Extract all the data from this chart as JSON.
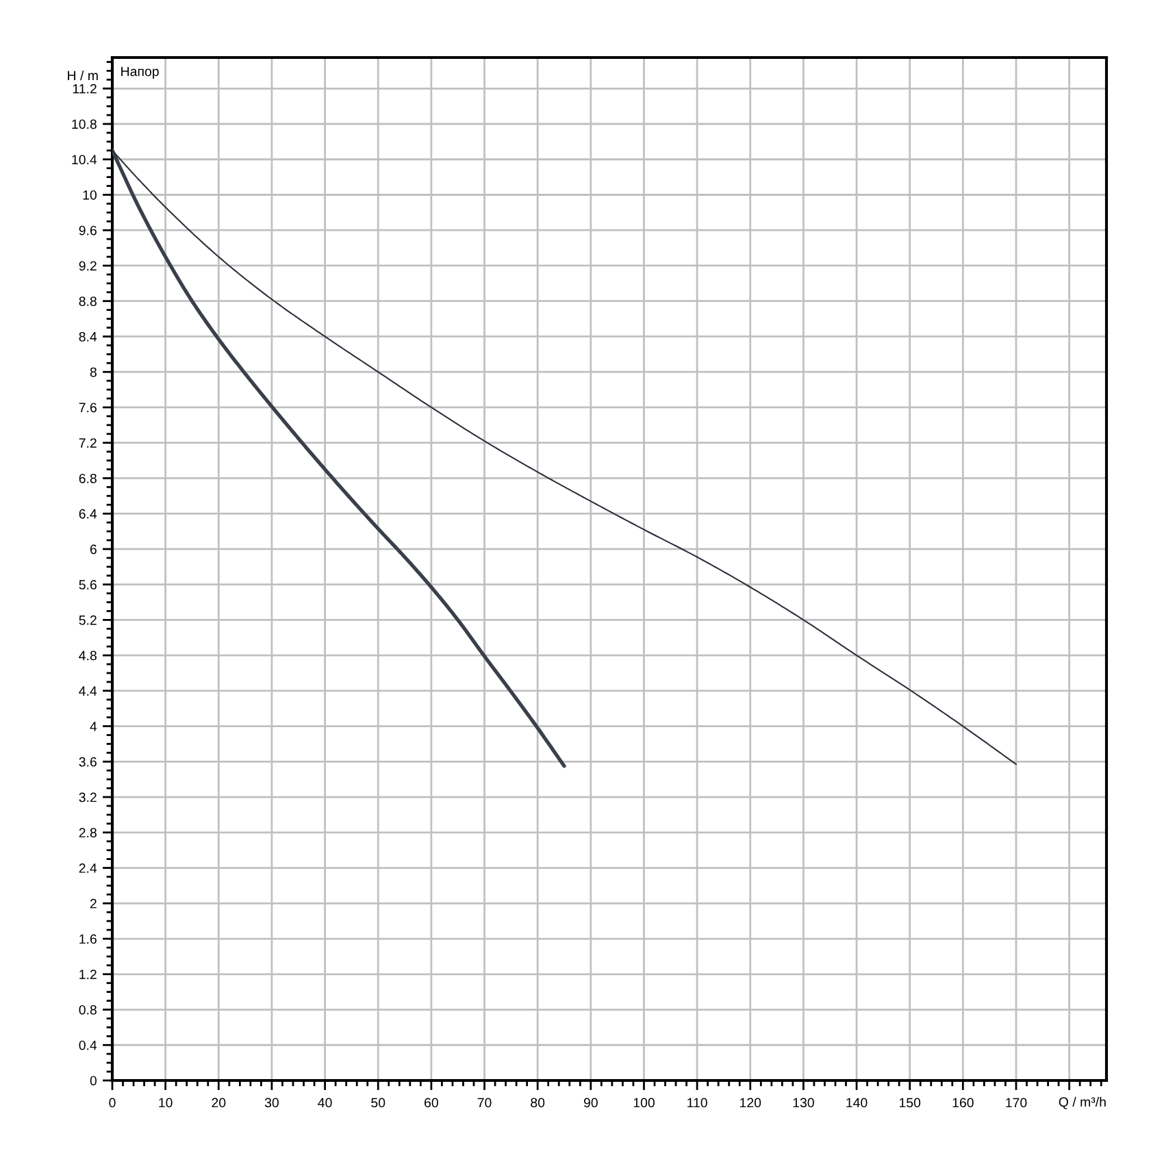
{
  "chart_data": {
    "type": "line",
    "title": "Напор",
    "xlabel": "Q / m³/h",
    "ylabel": "H / m",
    "series": [
      {
        "color": "#3a3f4b",
        "x": [
          0,
          5,
          10,
          15,
          20,
          25,
          30,
          35,
          40,
          45,
          50,
          55,
          60,
          65,
          70,
          75,
          80,
          85
        ],
        "values": [
          10.5,
          9.86,
          9.3,
          8.8,
          8.37,
          7.98,
          7.61,
          7.25,
          6.9,
          6.56,
          6.23,
          5.91,
          5.57,
          5.2,
          4.79,
          4.39,
          3.98,
          3.55
        ]
      },
      {
        "color": "#2b303b",
        "x": [
          0,
          5,
          10,
          20,
          30,
          40,
          50,
          60,
          70,
          80,
          90,
          100,
          110,
          120,
          130,
          140,
          150,
          160,
          170
        ],
        "values": [
          10.5,
          10.17,
          9.86,
          9.3,
          8.82,
          8.4,
          8.0,
          7.6,
          7.22,
          6.87,
          6.54,
          6.22,
          5.91,
          5.57,
          5.2,
          4.8,
          4.41,
          4.0,
          3.57
        ]
      }
    ],
    "xlim": [
      0,
      187
    ],
    "ylim": [
      0,
      11.55
    ],
    "xticks": [
      0,
      {
        "value": 2,
        "label": null
      },
      {
        "value": 4,
        "label": null
      },
      {
        "value": 6,
        "label": null
      },
      {
        "value": 8,
        "label": null
      },
      10,
      {
        "value": 12,
        "label": null
      },
      {
        "value": 14,
        "label": null
      },
      {
        "value": 16,
        "label": null
      },
      {
        "value": 18,
        "label": null
      },
      20,
      {
        "value": 22,
        "label": null
      },
      {
        "value": 24,
        "label": null
      },
      {
        "value": 26,
        "label": null
      },
      {
        "value": 28,
        "label": null
      },
      30,
      {
        "value": 32,
        "label": null
      },
      {
        "value": 34,
        "label": null
      },
      {
        "value": 36,
        "label": null
      },
      {
        "value": 38,
        "label": null
      },
      40,
      {
        "value": 42,
        "label": null
      },
      {
        "value": 44,
        "label": null
      },
      {
        "value": 46,
        "label": null
      },
      {
        "value": 48,
        "label": null
      },
      50,
      {
        "value": 52,
        "label": null
      },
      {
        "value": 54,
        "label": null
      },
      {
        "value": 56,
        "label": null
      },
      {
        "value": 58,
        "label": null
      },
      60,
      {
        "value": 62,
        "label": null
      },
      {
        "value": 64,
        "label": null
      },
      {
        "value": 66,
        "label": null
      },
      {
        "value": 68,
        "label": null
      },
      70,
      {
        "value": 72,
        "label": null
      },
      {
        "value": 74,
        "label": null
      },
      {
        "value": 76,
        "label": null
      },
      {
        "value": 78,
        "label": null
      },
      80,
      {
        "value": 82,
        "label": null
      },
      {
        "value": 84,
        "label": null
      },
      {
        "value": 86,
        "label": null
      },
      {
        "value": 88,
        "label": null
      },
      90,
      {
        "value": 92,
        "label": null
      },
      {
        "value": 94,
        "label": null
      },
      {
        "value": 96,
        "label": null
      },
      {
        "value": 98,
        "label": null
      },
      100,
      {
        "value": 102,
        "label": null
      },
      {
        "value": 104,
        "label": null
      },
      {
        "value": 106,
        "label": null
      },
      {
        "value": 108,
        "label": null
      },
      110,
      {
        "value": 112,
        "label": null
      },
      {
        "value": 114,
        "label": null
      },
      {
        "value": 116,
        "label": null
      },
      {
        "value": 118,
        "label": null
      },
      120,
      {
        "value": 122,
        "label": null
      },
      {
        "value": 124,
        "label": null
      },
      {
        "value": 126,
        "label": null
      },
      {
        "value": 128,
        "label": null
      },
      130,
      {
        "value": 132,
        "label": null
      },
      {
        "value": 134,
        "label": null
      },
      {
        "value": 136,
        "label": null
      },
      {
        "value": 138,
        "label": null
      },
      140,
      {
        "value": 142,
        "label": null
      },
      {
        "value": 144,
        "label": null
      },
      {
        "value": 146,
        "label": null
      },
      {
        "value": 148,
        "label": null
      },
      150,
      {
        "value": 152,
        "label": null
      },
      {
        "value": 154,
        "label": null
      },
      {
        "value": 156,
        "label": null
      },
      {
        "value": 158,
        "label": null
      },
      160,
      {
        "value": 162,
        "label": null
      },
      {
        "value": 164,
        "label": null
      },
      {
        "value": 166,
        "label": null
      },
      {
        "value": 168,
        "label": null
      },
      170,
      {
        "value": 172,
        "label": null
      },
      {
        "value": 174,
        "label": null
      },
      {
        "value": 176,
        "label": null
      },
      {
        "value": 178,
        "label": null
      },
      {
        "value": 180,
        "label": null
      },
      {
        "value": 182,
        "label": null
      },
      {
        "value": 184,
        "label": null
      },
      {
        "value": 186,
        "label": null
      }
    ],
    "yticks": [
      0,
      {
        "value": 0.1,
        "label": null
      },
      {
        "value": 0.2,
        "label": null
      },
      {
        "value": 0.3,
        "label": null
      },
      0.4,
      {
        "value": 0.5,
        "label": null
      },
      {
        "value": 0.6,
        "label": null
      },
      {
        "value": 0.7,
        "label": null
      },
      0.8,
      {
        "value": 0.9,
        "label": null
      },
      {
        "value": 1,
        "label": null
      },
      {
        "value": 1.1,
        "label": null
      },
      1.2,
      {
        "value": 1.3,
        "label": null
      },
      {
        "value": 1.4,
        "label": null
      },
      {
        "value": 1.5,
        "label": null
      },
      1.6,
      {
        "value": 1.7,
        "label": null
      },
      {
        "value": 1.8,
        "label": null
      },
      {
        "value": 1.9,
        "label": null
      },
      2,
      {
        "value": 2.1,
        "label": null
      },
      {
        "value": 2.2,
        "label": null
      },
      {
        "value": 2.3,
        "label": null
      },
      2.4,
      {
        "value": 2.5,
        "label": null
      },
      {
        "value": 2.6,
        "label": null
      },
      {
        "value": 2.7,
        "label": null
      },
      2.8,
      {
        "value": 2.9,
        "label": null
      },
      {
        "value": 3,
        "label": null
      },
      {
        "value": 3.1,
        "label": null
      },
      3.2,
      {
        "value": 3.3,
        "label": null
      },
      {
        "value": 3.4,
        "label": null
      },
      {
        "value": 3.5,
        "label": null
      },
      3.6,
      {
        "value": 3.7,
        "label": null
      },
      {
        "value": 3.8,
        "label": null
      },
      {
        "value": 3.9,
        "label": null
      },
      4,
      {
        "value": 4.1,
        "label": null
      },
      {
        "value": 4.2,
        "label": null
      },
      {
        "value": 4.3,
        "label": null
      },
      4.4,
      {
        "value": 4.5,
        "label": null
      },
      {
        "value": 4.6,
        "label": null
      },
      {
        "value": 4.7,
        "label": null
      },
      4.8,
      {
        "value": 4.9,
        "label": null
      },
      {
        "value": 5,
        "label": null
      },
      {
        "value": 5.1,
        "label": null
      },
      5.2,
      {
        "value": 5.3,
        "label": null
      },
      {
        "value": 5.4,
        "label": null
      },
      {
        "value": 5.5,
        "label": null
      },
      5.6,
      {
        "value": 5.7,
        "label": null
      },
      {
        "value": 5.8,
        "label": null
      },
      {
        "value": 5.9,
        "label": null
      },
      6,
      {
        "value": 6.1,
        "label": null
      },
      {
        "value": 6.2,
        "label": null
      },
      {
        "value": 6.3,
        "label": null
      },
      6.4,
      {
        "value": 6.5,
        "label": null
      },
      {
        "value": 6.6,
        "label": null
      },
      {
        "value": 6.7,
        "label": null
      },
      6.8,
      {
        "value": 6.9,
        "label": null
      },
      {
        "value": 7,
        "label": null
      },
      {
        "value": 7.1,
        "label": null
      },
      7.2,
      {
        "value": 7.3,
        "label": null
      },
      {
        "value": 7.4,
        "label": null
      },
      {
        "value": 7.5,
        "label": null
      },
      7.6,
      {
        "value": 7.7,
        "label": null
      },
      {
        "value": 7.8,
        "label": null
      },
      {
        "value": 7.9,
        "label": null
      },
      8,
      {
        "value": 8.1,
        "label": null
      },
      {
        "value": 8.2,
        "label": null
      },
      {
        "value": 8.3,
        "label": null
      },
      8.4,
      {
        "value": 8.5,
        "label": null
      },
      {
        "value": 8.6,
        "label": null
      },
      {
        "value": 8.7,
        "label": null
      },
      8.8,
      {
        "value": 8.9,
        "label": null
      },
      {
        "value": 9,
        "label": null
      },
      {
        "value": 9.1,
        "label": null
      },
      9.2,
      {
        "value": 9.3,
        "label": null
      },
      {
        "value": 9.4,
        "label": null
      },
      {
        "value": 9.5,
        "label": null
      },
      9.6,
      {
        "value": 9.7,
        "label": null
      },
      {
        "value": 9.8,
        "label": null
      },
      {
        "value": 9.9,
        "label": null
      },
      10,
      {
        "value": 10.1,
        "label": null
      },
      {
        "value": 10.2,
        "label": null
      },
      {
        "value": 10.3,
        "label": null
      },
      10.4,
      {
        "value": 10.5,
        "label": null
      },
      {
        "value": 10.6,
        "label": null
      },
      {
        "value": 10.7,
        "label": null
      },
      10.8,
      {
        "value": 10.9,
        "label": null
      },
      {
        "value": 11,
        "label": null
      },
      {
        "value": 11.1,
        "label": null
      },
      11.2,
      {
        "value": 11.3,
        "label": null
      },
      {
        "value": 11.4,
        "label": null
      },
      {
        "value": 11.5,
        "label": null
      }
    ],
    "grid": true
  }
}
